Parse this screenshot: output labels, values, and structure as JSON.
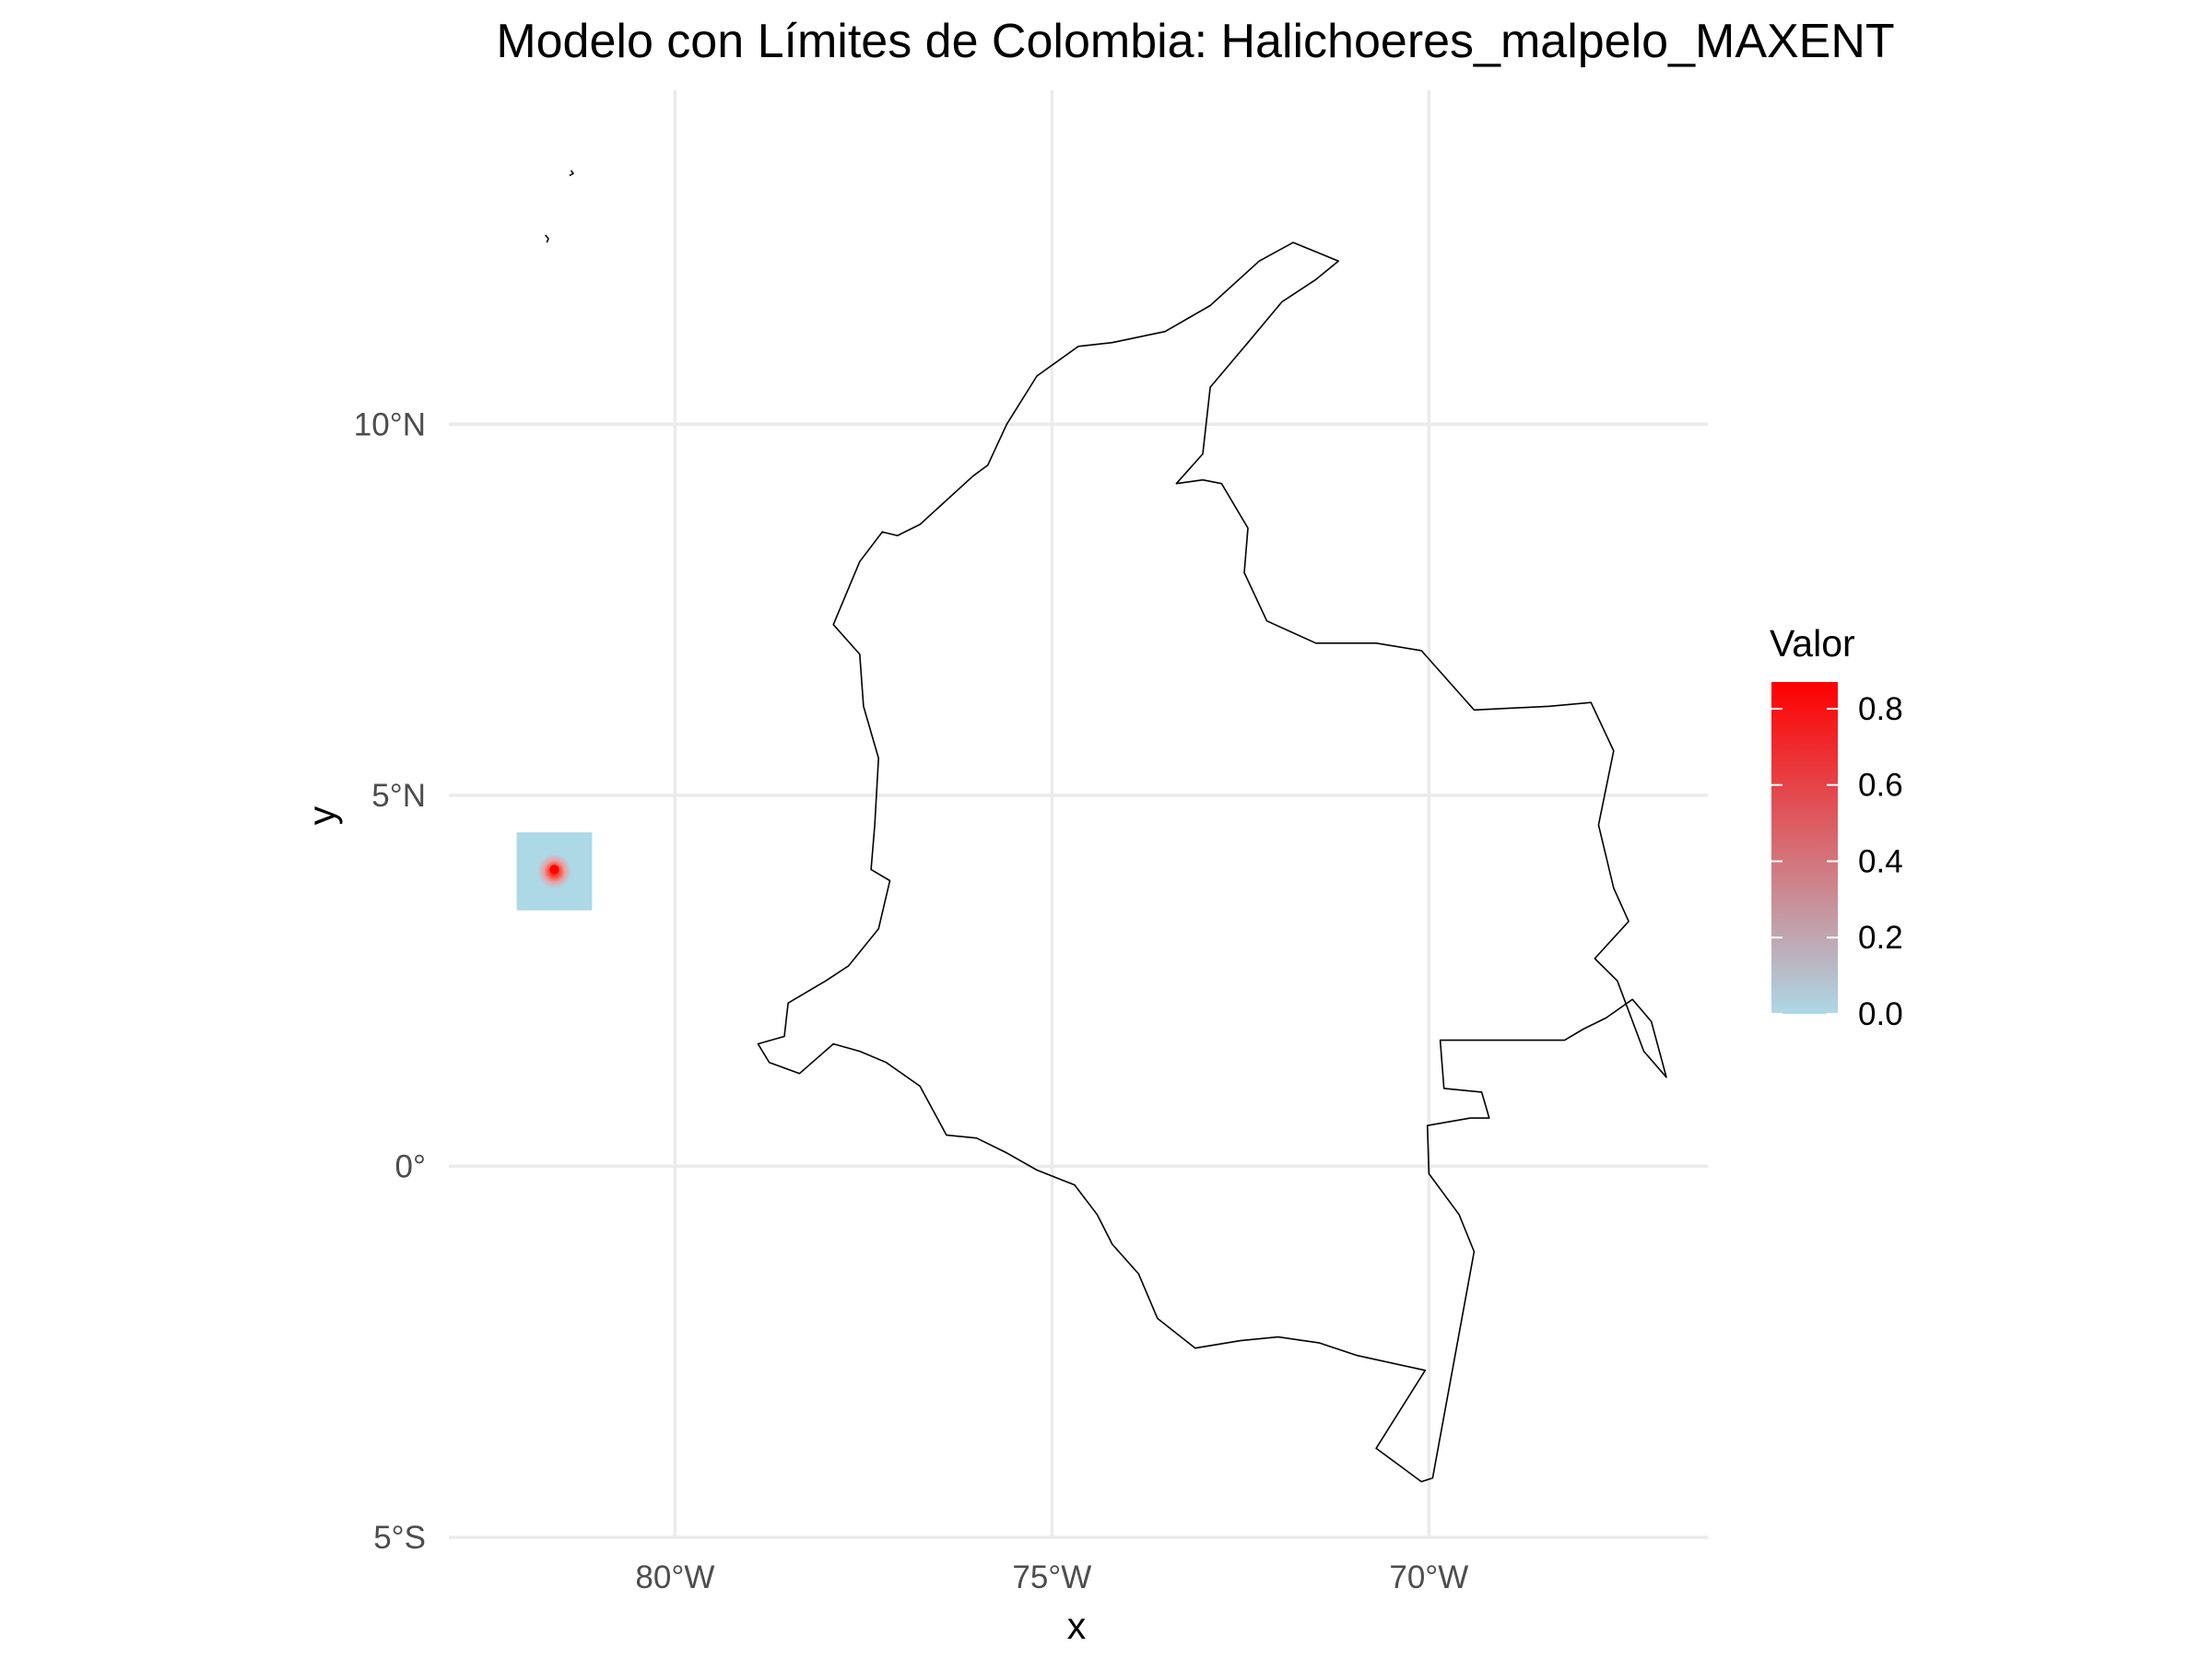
{
  "title": "Modelo con Límites de Colombia: Halichoeres_malpelo_MAXENT",
  "chart_data": {
    "type": "raster-map",
    "title": "Modelo con Límites de Colombia: Halichoeres_malpelo_MAXENT",
    "xlabel": "x",
    "ylabel": "y",
    "xlim": [
      -83,
      -66.3
    ],
    "ylim": [
      -5,
      14.5
    ],
    "x_ticks": [
      -80,
      -75,
      -70
    ],
    "x_tick_labels": [
      "80°W",
      "75°W",
      "70°W"
    ],
    "y_ticks": [
      10,
      5,
      0,
      -5
    ],
    "y_tick_labels": [
      "10°N",
      "5°N",
      "0°",
      "5°S"
    ],
    "grid": true,
    "raster": {
      "extent": {
        "lon": [
          -82.1,
          -81.1
        ],
        "lat": [
          3.45,
          4.5
        ]
      },
      "peak": {
        "lon": -81.6,
        "lat": 4.0,
        "value": 0.87
      },
      "background_value": 0.0
    },
    "legend": {
      "title": "Valor",
      "placement": "right",
      "min": 0.0,
      "max": 0.87,
      "ticks": [
        0.8,
        0.6,
        0.4,
        0.2,
        0.0
      ],
      "tick_labels": [
        "0.8",
        "0.6",
        "0.4",
        "0.2",
        "0.0"
      ],
      "low_color": "#add8e6",
      "high_color": "#ff0000"
    },
    "border_outline": [
      [
        -77.9,
        1.65
      ],
      [
        -77.55,
        1.55
      ],
      [
        -77.2,
        1.4
      ],
      [
        -76.75,
        1.08
      ],
      [
        -76.4,
        0.42
      ],
      [
        -76.0,
        0.38
      ],
      [
        -75.6,
        0.18
      ],
      [
        -75.2,
        -0.05
      ],
      [
        -74.7,
        -0.25
      ],
      [
        -74.4,
        -0.65
      ],
      [
        -74.2,
        -1.05
      ],
      [
        -73.85,
        -1.45
      ],
      [
        -73.6,
        -2.05
      ],
      [
        -73.1,
        -2.45
      ],
      [
        -72.5,
        -2.35
      ],
      [
        -72.0,
        -2.3
      ],
      [
        -71.45,
        -2.38
      ],
      [
        -70.95,
        -2.55
      ],
      [
        -70.05,
        -2.75
      ],
      [
        -70.7,
        -3.8
      ],
      [
        -70.1,
        -4.25
      ],
      [
        -69.95,
        -4.2
      ],
      [
        -69.4,
        -1.15
      ],
      [
        -69.6,
        -0.65
      ],
      [
        -70.0,
        -0.1
      ],
      [
        -70.02,
        0.55
      ],
      [
        -69.45,
        0.65
      ],
      [
        -69.2,
        0.65
      ],
      [
        -69.3,
        1.0
      ],
      [
        -69.8,
        1.05
      ],
      [
        -69.85,
        1.7
      ],
      [
        -68.2,
        1.7
      ],
      [
        -67.95,
        1.85
      ],
      [
        -67.65,
        2.0
      ],
      [
        -67.3,
        2.25
      ],
      [
        -67.05,
        1.95
      ],
      [
        -66.85,
        1.2
      ],
      [
        -67.15,
        1.55
      ],
      [
        -67.5,
        2.5
      ],
      [
        -67.8,
        2.8
      ],
      [
        -67.35,
        3.3
      ],
      [
        -67.55,
        3.75
      ],
      [
        -67.75,
        4.6
      ],
      [
        -67.55,
        5.6
      ],
      [
        -67.85,
        6.25
      ],
      [
        -68.4,
        6.2
      ],
      [
        -69.4,
        6.15
      ],
      [
        -70.1,
        6.95
      ],
      [
        -70.7,
        7.05
      ],
      [
        -71.5,
        7.05
      ],
      [
        -72.15,
        7.35
      ],
      [
        -72.45,
        8.0
      ],
      [
        -72.4,
        8.6
      ],
      [
        -72.75,
        9.2
      ],
      [
        -73.0,
        9.25
      ],
      [
        -73.35,
        9.2
      ],
      [
        -73.0,
        9.6
      ],
      [
        -72.9,
        10.5
      ],
      [
        -72.4,
        11.1
      ],
      [
        -71.95,
        11.65
      ],
      [
        -71.5,
        11.95
      ],
      [
        -71.2,
        12.2
      ],
      [
        -71.8,
        12.45
      ],
      [
        -72.25,
        12.2
      ],
      [
        -72.9,
        11.6
      ],
      [
        -73.5,
        11.25
      ],
      [
        -74.2,
        11.1
      ],
      [
        -74.65,
        11.05
      ],
      [
        -75.2,
        10.65
      ],
      [
        -75.6,
        10.0
      ],
      [
        -75.85,
        9.45
      ],
      [
        -76.05,
        9.3
      ],
      [
        -76.75,
        8.65
      ],
      [
        -77.05,
        8.5
      ],
      [
        -77.25,
        8.55
      ],
      [
        -77.55,
        8.15
      ],
      [
        -77.9,
        7.3
      ],
      [
        -77.55,
        6.9
      ],
      [
        -77.5,
        6.2
      ],
      [
        -77.3,
        5.5
      ],
      [
        -77.35,
        4.6
      ],
      [
        -77.4,
        4.0
      ],
      [
        -77.15,
        3.85
      ],
      [
        -77.3,
        3.2
      ],
      [
        -77.7,
        2.7
      ],
      [
        -78.0,
        2.5
      ],
      [
        -78.5,
        2.2
      ],
      [
        -78.55,
        1.75
      ],
      [
        -78.9,
        1.65
      ],
      [
        -78.75,
        1.4
      ],
      [
        -78.35,
        1.25
      ],
      [
        -77.9,
        1.65
      ]
    ],
    "island_outlines": [
      [
        [
          -81.72,
          12.55
        ],
        [
          -81.68,
          12.5
        ],
        [
          -81.7,
          12.45
        ]
      ],
      [
        [
          -81.4,
          13.35
        ],
        [
          -81.35,
          13.38
        ],
        [
          -81.38,
          13.42
        ]
      ]
    ]
  }
}
